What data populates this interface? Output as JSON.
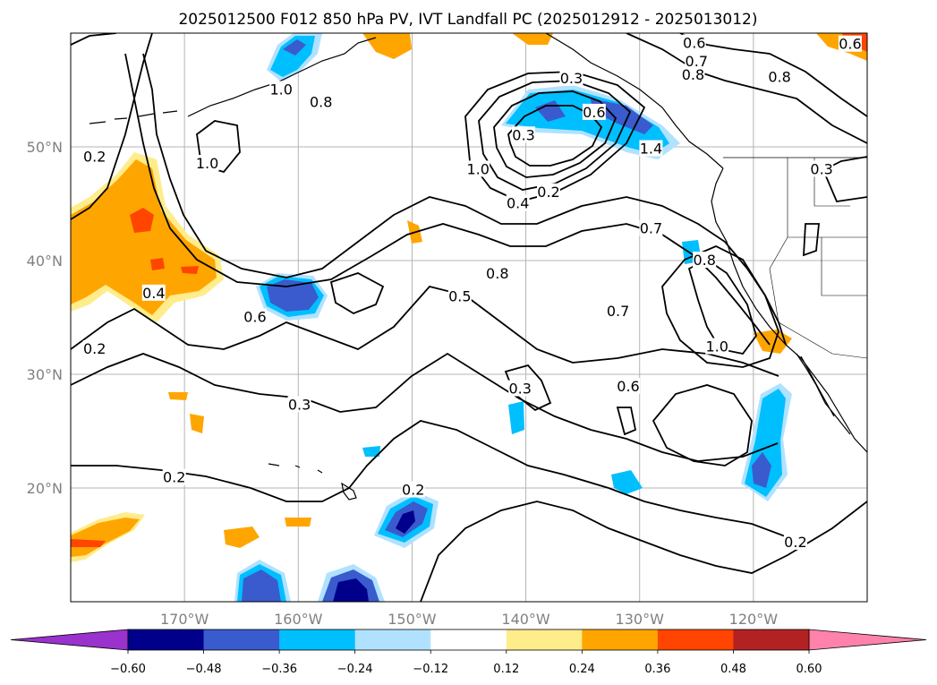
{
  "title": "2025012500 F012 850 hPa PV, IVT Landfall PC (2025012912 - 2025013012)",
  "map": {
    "projection": "PlateCarree",
    "lon_range": [
      -180,
      -110
    ],
    "lat_range": [
      10,
      60
    ],
    "lon_ticks": [
      {
        "value": -170,
        "label": "170°W"
      },
      {
        "value": -160,
        "label": "160°W"
      },
      {
        "value": -150,
        "label": "150°W"
      },
      {
        "value": -140,
        "label": "140°W"
      },
      {
        "value": -130,
        "label": "130°W"
      },
      {
        "value": -120,
        "label": "120°W"
      }
    ],
    "lat_ticks": [
      {
        "value": 20,
        "label": "20°N"
      },
      {
        "value": 30,
        "label": "30°N"
      },
      {
        "value": 40,
        "label": "40°N"
      },
      {
        "value": 50,
        "label": "50°N"
      }
    ],
    "gridlines": true
  },
  "colorbar": {
    "ticks": [
      "−0.60",
      "−0.48",
      "−0.36",
      "−0.24",
      "−0.12",
      "0.12",
      "0.24",
      "0.36",
      "0.48",
      "0.60"
    ],
    "colors": [
      "#9a32cd",
      "#00008b",
      "#3a5bcd",
      "#00bfff",
      "#b0e2ff",
      "#ffffff",
      "#ffec8b",
      "#ffa500",
      "#ff4500",
      "#b22222",
      "#ff82ab"
    ]
  },
  "contour_labels": [
    {
      "text": "0.2",
      "lon": -177.9,
      "lat": 49.1
    },
    {
      "text": "1.0",
      "lon": -161.5,
      "lat": 55.0
    },
    {
      "text": "0.8",
      "lon": -158.0,
      "lat": 53.9
    },
    {
      "text": "1.0",
      "lon": -168.0,
      "lat": 48.5
    },
    {
      "text": "0.3",
      "lon": -140.2,
      "lat": 51.0
    },
    {
      "text": "1.0",
      "lon": -144.2,
      "lat": 48.0
    },
    {
      "text": "0.4",
      "lon": -140.7,
      "lat": 45.0
    },
    {
      "text": "0.2",
      "lon": -138.0,
      "lat": 46.0
    },
    {
      "text": "0.3",
      "lon": -136.0,
      "lat": 56.0
    },
    {
      "text": "0.6",
      "lon": -134.0,
      "lat": 53.0
    },
    {
      "text": "0.6",
      "lon": -125.2,
      "lat": 59.1
    },
    {
      "text": "0.7",
      "lon": -125.0,
      "lat": 57.5
    },
    {
      "text": "0.8",
      "lon": -125.3,
      "lat": 56.3
    },
    {
      "text": "0.8",
      "lon": -117.7,
      "lat": 56.1
    },
    {
      "text": "0.3",
      "lon": -114.0,
      "lat": 48.0
    },
    {
      "text": "0.6",
      "lon": -111.5,
      "lat": 59.0
    },
    {
      "text": "1.4",
      "lon": -129.0,
      "lat": 49.8
    },
    {
      "text": "0.7",
      "lon": -129.0,
      "lat": 42.8
    },
    {
      "text": "0.8",
      "lon": -142.5,
      "lat": 38.8
    },
    {
      "text": "0.4",
      "lon": -172.7,
      "lat": 37.1
    },
    {
      "text": "0.5",
      "lon": -145.8,
      "lat": 36.8
    },
    {
      "text": "0.6",
      "lon": -163.8,
      "lat": 35.0
    },
    {
      "text": "0.7",
      "lon": -131.9,
      "lat": 35.5
    },
    {
      "text": "0.8",
      "lon": -124.3,
      "lat": 40.0
    },
    {
      "text": "1.0",
      "lon": -123.2,
      "lat": 32.4
    },
    {
      "text": "0.2",
      "lon": -177.9,
      "lat": 32.2
    },
    {
      "text": "0.3",
      "lon": -140.5,
      "lat": 28.7
    },
    {
      "text": "0.3",
      "lon": -159.9,
      "lat": 27.3
    },
    {
      "text": "0.6",
      "lon": -131.0,
      "lat": 28.9
    },
    {
      "text": "0.2",
      "lon": -170.9,
      "lat": 20.9
    },
    {
      "text": "0.2",
      "lon": -149.9,
      "lat": 19.8
    },
    {
      "text": "0.2",
      "lon": -116.3,
      "lat": 15.2
    }
  ]
}
